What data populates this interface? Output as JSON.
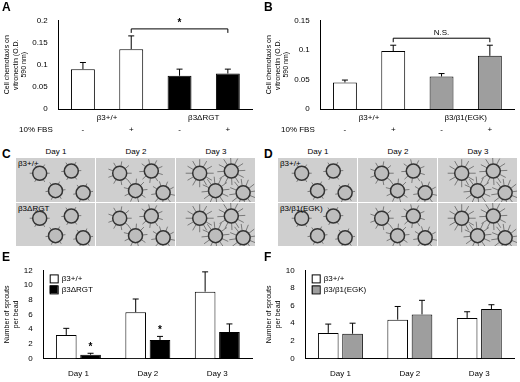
{
  "chart_data": [
    {
      "title": "A",
      "type": "bar",
      "categories": [
        "-",
        "+",
        "-",
        "+"
      ],
      "x_label": "10% FBS",
      "groups": [
        "β3+/+",
        "β3ΔRGT"
      ],
      "values": [
        0.09,
        0.135,
        0.075,
        0.08
      ],
      "errors": [
        0.015,
        0.03,
        0.015,
        0.01
      ],
      "colors": [
        "#ffffff",
        "#ffffff",
        "#000000",
        "#000000"
      ],
      "y_label": "Cell chemotaxis on vitronectin (O.D. 590 nm)",
      "ylim": [
        0,
        0.2
      ],
      "yticks": [
        0,
        0.05,
        0.1,
        0.15,
        0.2
      ],
      "grid": false,
      "significance": {
        "label": "*",
        "between": [
          1,
          3
        ]
      }
    },
    {
      "title": "B",
      "type": "bar",
      "categories": [
        "-",
        "+",
        "-",
        "+"
      ],
      "x_label": "10% FBS",
      "groups": [
        "β3+/+",
        "β3/β1(EGK)"
      ],
      "values": [
        0.045,
        0.098,
        0.055,
        0.09
      ],
      "errors": [
        0.004,
        0.01,
        0.005,
        0.018
      ],
      "colors": [
        "#ffffff",
        "#ffffff",
        "#9e9e9e",
        "#9e9e9e"
      ],
      "y_label": "Cell chemotaxis on vitronectin (O.D. 590 nm)",
      "ylim": [
        0,
        0.15
      ],
      "yticks": [
        0,
        0.05,
        0.1,
        0.15
      ],
      "grid": false,
      "significance": {
        "label": "N.S.",
        "between": [
          1,
          3
        ]
      }
    },
    {
      "title": "E",
      "type": "bar",
      "categories": [
        "Day 1",
        "Day 2",
        "Day 3"
      ],
      "series": [
        {
          "name": "β3+/+",
          "color": "#ffffff",
          "values": [
            3.2,
            6.3,
            9.1
          ],
          "errors": [
            0.9,
            1.8,
            2.7
          ]
        },
        {
          "name": "β3ΔRGT",
          "color": "#000000",
          "values": [
            0.5,
            2.5,
            3.6
          ],
          "errors": [
            0.2,
            0.5,
            1.1
          ],
          "significance": [
            "*",
            "*",
            null
          ]
        }
      ],
      "y_label": "Number of sprouts per bead",
      "ylim": [
        0,
        12
      ],
      "yticks": [
        0,
        2,
        4,
        6,
        8,
        10,
        12
      ],
      "grid": false,
      "legend": "top-left"
    },
    {
      "title": "F",
      "type": "bar",
      "categories": [
        "Day 1",
        "Day 2",
        "Day 3"
      ],
      "series": [
        {
          "name": "β3+/+",
          "color": "#ffffff",
          "values": [
            2.9,
            4.4,
            4.6
          ],
          "errors": [
            1.0,
            1.5,
            0.7
          ]
        },
        {
          "name": "β3/β1(EGK)",
          "color": "#9e9e9e",
          "values": [
            2.8,
            5.0,
            5.6
          ],
          "errors": [
            1.2,
            1.6,
            0.5
          ]
        }
      ],
      "y_label": "Number of sprouts per bead",
      "ylim": [
        0,
        10
      ],
      "yticks": [
        0,
        2,
        4,
        6,
        8,
        10
      ],
      "grid": false,
      "legend": "top-left"
    }
  ],
  "image_panels": [
    {
      "title": "C",
      "columns": [
        "Day 1",
        "Day 2",
        "Day 3"
      ],
      "rows": [
        "β3+/+",
        "β3ΔRGT"
      ]
    },
    {
      "title": "D",
      "columns": [
        "Day 1",
        "Day 2",
        "Day 3"
      ],
      "rows": [
        "β3+/+",
        "β3/β1(EGK)"
      ]
    }
  ]
}
